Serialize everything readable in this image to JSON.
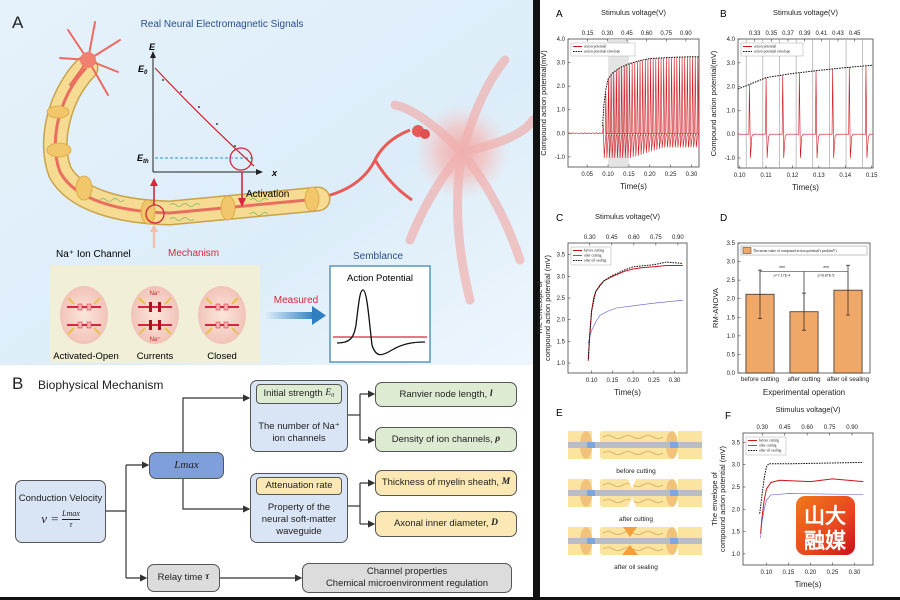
{
  "left": {
    "panel_a": {
      "label": "A",
      "title": "Real Neural Electromagnetic Signals",
      "inset": {
        "y_axis": "E",
        "x_axis": "x",
        "e0": "E",
        "e0_sub": "0",
        "eth": "E",
        "eth_sub": "th"
      },
      "activation": "Activation",
      "channel_title": "Na⁺ Ion Channel",
      "mechanism": "Mechanism",
      "channel_states": [
        "Activated-Open",
        "Currents",
        "Closed"
      ],
      "na_labels": [
        "Na⁺",
        "Na⁺"
      ],
      "measured": "Measured",
      "semblance": "Semblance",
      "ap_title": "Action Potential",
      "colors": {
        "background": "#e3f1fb",
        "axon": "#f3d98a",
        "neuron": "#e8605a",
        "accent_red": "#d7263d",
        "accent_blue": "#2f7fc1"
      }
    },
    "panel_b": {
      "label": "B",
      "title": "Biophysical Mechanism",
      "conduction_velocity": "Conduction Velocity",
      "formula_lhs": "v =",
      "formula_num": "Lmax",
      "formula_den": "τ",
      "lmax": "Lmax",
      "initial_strength": "Initial strength",
      "initial_strength_sym": "E₀",
      "na_channels": "The number of Na⁺ ion channels",
      "attenuation": "Attenuation rate",
      "waveguide": "Property of the neural soft-matter waveguide",
      "ranvier": "Ranvier node length,",
      "ranvier_sym": "l",
      "density": "Density of ion channels,",
      "density_sym": "ρ",
      "myelin": "Thickness of myelin sheath,",
      "myelin_sym": "M",
      "diameter": "Axonal inner diameter,",
      "diameter_sym": "D",
      "relay": "Relay time",
      "relay_sym": "τ",
      "channel_props": "Channel properties",
      "chem_reg": "Chemical microenvironment regulation"
    }
  },
  "panel_e": {
    "label": "E",
    "captions": [
      "before cutting",
      "after cutting",
      "after oil sealing"
    ]
  },
  "watermark": {
    "text_top": "山大",
    "text_bottom": "融媒",
    "color": "#e8461e"
  },
  "chart_data": [
    {
      "panel": "A",
      "type": "line",
      "top_label": "Stimulus voltage(V)",
      "top_ticks": [
        "0.15",
        "0.30",
        "0.45",
        "0.60",
        "0.75",
        "0.90"
      ],
      "top_lim": [
        0.0,
        1.0
      ],
      "xlabel": "Time(s)",
      "ylabel": [
        "Compound action potential(mV)"
      ],
      "xlim": [
        0.004,
        0.318
      ],
      "ylim": [
        -1.43,
        4.0
      ],
      "xticks": [
        "0.05",
        "0.10",
        "0.15",
        "0.20",
        "0.25",
        "0.30"
      ],
      "yticks": [
        "-1.0",
        "0.0",
        "1.0",
        "2.0",
        "3.0",
        "4.0"
      ],
      "shaded": [
        0.1,
        0.15
      ],
      "legend": "top-left",
      "series": [
        {
          "name": "action potential",
          "color": "#d0141c",
          "style": "solid",
          "kind": "spikes",
          "onset": 0.087,
          "spike_interval": 0.0063,
          "trough": -1.05
        },
        {
          "name": "action potential envelope",
          "color": "#111111",
          "style": "dotted",
          "points": [
            [
              0.087,
              0.3
            ],
            [
              0.09,
              1.2
            ],
            [
              0.095,
              1.9
            ],
            [
              0.1,
              2.3
            ],
            [
              0.11,
              2.55
            ],
            [
              0.13,
              2.8
            ],
            [
              0.15,
              2.95
            ],
            [
              0.18,
              3.1
            ],
            [
              0.2,
              3.17
            ],
            [
              0.25,
              3.22
            ],
            [
              0.3,
              3.25
            ],
            [
              0.318,
              3.24
            ]
          ]
        }
      ]
    },
    {
      "panel": "B",
      "type": "line",
      "top_label": "Stimulus voltage(V)",
      "top_ticks": [
        "0.33",
        "0.35",
        "0.37",
        "0.39",
        "0.41",
        "0.43",
        "0.45"
      ],
      "top_lim": [
        0.31,
        0.472
      ],
      "xlabel": "Time(s)",
      "ylabel": [
        "Compound action potential(mV)"
      ],
      "xlim": [
        0.0994,
        0.1505
      ],
      "ylim": [
        -1.42,
        4.0
      ],
      "xticks": [
        "0.10",
        "0.11",
        "0.12",
        "0.13",
        "0.14",
        "0.15"
      ],
      "yticks": [
        "-1.0",
        "0.0",
        "1.0",
        "2.0",
        "3.0",
        "4.0"
      ],
      "vgrid": [
        0.1025,
        0.1088,
        0.1151,
        0.1214,
        0.1277,
        0.134,
        0.1403,
        0.1466
      ],
      "legend": "top-left",
      "series": [
        {
          "name": "action potential",
          "color": "#d0141c",
          "style": "solid",
          "kind": "spikes",
          "spike_times": [
            0.1035,
            0.1098,
            0.1161,
            0.1224,
            0.1287,
            0.135,
            0.1413,
            0.1476
          ],
          "trough": -1.0
        },
        {
          "name": "action potential envelope",
          "color": "#111111",
          "style": "dotted",
          "points": [
            [
              0.0994,
              1.9
            ],
            [
              0.104,
              2.1
            ],
            [
              0.11,
              2.38
            ],
            [
              0.12,
              2.55
            ],
            [
              0.13,
              2.68
            ],
            [
              0.14,
              2.8
            ],
            [
              0.1505,
              2.9
            ]
          ]
        }
      ]
    },
    {
      "panel": "C",
      "type": "line",
      "top_label": "Stimulus voltage(V)",
      "top_ticks": [
        "0.30",
        "0.45",
        "0.60",
        "0.75",
        "0.90"
      ],
      "top_lim": [
        0.152,
        0.962
      ],
      "xlabel": "Time(s)",
      "ylabel": [
        "The envelope of",
        "compound action potential (mV)"
      ],
      "xlim": [
        0.043,
        0.33
      ],
      "ylim": [
        0.77,
        3.77
      ],
      "xticks": [
        "0.10",
        "0.15",
        "0.20",
        "0.25",
        "0.30"
      ],
      "yticks": [
        "1.0",
        "1.5",
        "2.0",
        "2.5",
        "3.0",
        "3.5"
      ],
      "legend": "top-left",
      "series": [
        {
          "name": "before cutting",
          "color": "#d0141c",
          "style": "solid",
          "points": [
            [
              0.092,
              1.05
            ],
            [
              0.095,
              1.6
            ],
            [
              0.1,
              2.2
            ],
            [
              0.105,
              2.5
            ],
            [
              0.11,
              2.65
            ],
            [
              0.12,
              2.8
            ],
            [
              0.13,
              2.9
            ],
            [
              0.15,
              3.0
            ],
            [
              0.18,
              3.12
            ],
            [
              0.2,
              3.17
            ],
            [
              0.22,
              3.2
            ],
            [
              0.25,
              3.22
            ],
            [
              0.28,
              3.25
            ],
            [
              0.32,
              3.25
            ]
          ]
        },
        {
          "name": "after cutting",
          "color": "#5b5bd6",
          "style": "solid-thin",
          "points": [
            [
              0.092,
              1.45
            ],
            [
              0.095,
              1.6
            ],
            [
              0.1,
              1.75
            ],
            [
              0.11,
              1.95
            ],
            [
              0.12,
              2.1
            ],
            [
              0.14,
              2.2
            ],
            [
              0.16,
              2.27
            ],
            [
              0.2,
              2.32
            ],
            [
              0.25,
              2.38
            ],
            [
              0.32,
              2.45
            ]
          ]
        },
        {
          "name": "after oil sealing",
          "color": "#111111",
          "style": "dotted",
          "points": [
            [
              0.092,
              1.1
            ],
            [
              0.095,
              1.6
            ],
            [
              0.1,
              2.2
            ],
            [
              0.11,
              2.65
            ],
            [
              0.13,
              2.9
            ],
            [
              0.15,
              3.02
            ],
            [
              0.18,
              3.15
            ],
            [
              0.2,
              3.22
            ],
            [
              0.25,
              3.27
            ],
            [
              0.28,
              3.33
            ],
            [
              0.32,
              3.3
            ]
          ]
        }
      ]
    },
    {
      "panel": "D",
      "type": "bar",
      "xlabel": "Experimental operation",
      "ylabel": [
        "RM-ANOVA"
      ],
      "categories": [
        "before cutting",
        "after cutting",
        "after oil sealing"
      ],
      "values": [
        2.12,
        1.65,
        2.23
      ],
      "errors": [
        0.65,
        0.5,
        0.67
      ],
      "ylim": [
        0,
        3.5
      ],
      "yticks": [
        "0.0",
        "0.5",
        "1.0",
        "1.5",
        "2.0",
        "2.5",
        "3.0",
        "3.5"
      ],
      "legend": "top",
      "legend_label": "The mean value of compound action potential's peak(mV)",
      "bar_color": "#f0a868",
      "significance": [
        {
          "from": 0,
          "to": 1,
          "stars": "***",
          "p": "p=7.17E-4",
          "y": 2.73
        },
        {
          "from": 1,
          "to": 2,
          "stars": "***",
          "p": "p=8.87E-5",
          "y": 2.73
        }
      ]
    },
    {
      "panel": "F",
      "type": "line",
      "top_label": "Stimulus voltage(V)",
      "top_ticks": [
        "0.30",
        "0.45",
        "0.60",
        "0.75",
        "0.90"
      ],
      "top_lim": [
        0.171,
        1.04
      ],
      "xlabel": "Time(s)",
      "ylabel": [
        "The envelope of",
        "compound action potential (mV)"
      ],
      "xlim": [
        0.047,
        0.342
      ],
      "ylim": [
        0.75,
        3.71
      ],
      "xticks": [
        "0.10",
        "0.15",
        "0.20",
        "0.25",
        "0.30"
      ],
      "yticks": [
        "1.0",
        "1.5",
        "2.0",
        "2.5",
        "3.0",
        "3.5"
      ],
      "legend": "top-left",
      "series": [
        {
          "name": "before cutting",
          "color": "#d0141c",
          "style": "solid",
          "points": [
            [
              0.087,
              1.45
            ],
            [
              0.09,
              1.8
            ],
            [
              0.095,
              2.2
            ],
            [
              0.1,
              2.45
            ],
            [
              0.11,
              2.6
            ],
            [
              0.13,
              2.65
            ],
            [
              0.2,
              2.62
            ],
            [
              0.25,
              2.68
            ],
            [
              0.32,
              2.62
            ]
          ]
        },
        {
          "name": "after cutting",
          "color": "#5b5bd6",
          "style": "solid-thin",
          "points": [
            [
              0.087,
              1.35
            ],
            [
              0.09,
              1.7
            ],
            [
              0.095,
              2.0
            ],
            [
              0.1,
              2.2
            ],
            [
              0.11,
              2.32
            ],
            [
              0.15,
              2.35
            ],
            [
              0.32,
              2.33
            ]
          ]
        },
        {
          "name": "after oil sealing",
          "color": "#111111",
          "style": "dotted",
          "points": [
            [
              0.085,
              1.9
            ],
            [
              0.09,
              2.3
            ],
            [
              0.095,
              2.7
            ],
            [
              0.1,
              2.95
            ],
            [
              0.105,
              3.02
            ],
            [
              0.15,
              3.02
            ],
            [
              0.32,
              3.05
            ]
          ]
        }
      ]
    }
  ]
}
